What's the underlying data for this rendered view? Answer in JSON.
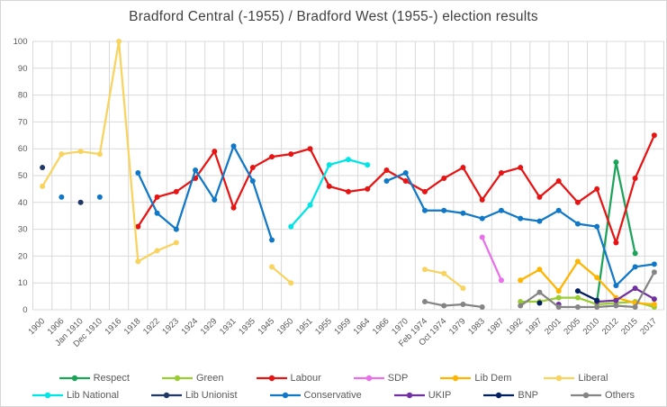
{
  "chart_data": {
    "type": "line",
    "title": "Bradford Central (-1955) / Bradford West (1955-) election results",
    "xlabel": "",
    "ylabel": "",
    "ylim": [
      0,
      100
    ],
    "y_tick_step": 10,
    "y_tick_labels": [
      "0",
      "10",
      "20",
      "30",
      "40",
      "50",
      "60",
      "70",
      "80",
      "90",
      "100"
    ],
    "grid": true,
    "legend_position": "bottom",
    "categories": [
      "1900",
      "1906",
      "Jan 1910",
      "Dec 1910",
      "1916",
      "1918",
      "1922",
      "1923",
      "1924",
      "1929",
      "1931",
      "1935",
      "1945",
      "1950",
      "1951",
      "1955",
      "1959",
      "1964",
      "1966",
      "1970",
      "Feb 1974",
      "Oct 1974",
      "1979",
      "1983",
      "1987",
      "1992",
      "1997",
      "2001",
      "2005",
      "2010",
      "2012",
      "2015",
      "2017"
    ],
    "series": [
      {
        "name": "Respect",
        "color": "#1CA35A",
        "points": [
          [
            "2010",
            3
          ],
          [
            "2012",
            55
          ],
          [
            "2015",
            21
          ]
        ]
      },
      {
        "name": "Green",
        "color": "#9ACD32",
        "points": [
          [
            "1992",
            3
          ],
          [
            "1997",
            3
          ],
          [
            "2001",
            4.5
          ],
          [
            "2005",
            4.5
          ],
          [
            "2010",
            2
          ],
          [
            "2012",
            2.5
          ],
          [
            "2015",
            3
          ],
          [
            "2017",
            1
          ]
        ]
      },
      {
        "name": "Labour",
        "color": "#E81313",
        "points": [
          [
            "1918",
            31
          ],
          [
            "1922",
            42
          ],
          [
            "1923",
            44
          ],
          [
            "1924",
            49
          ],
          [
            "1929",
            59
          ],
          [
            "1931",
            38
          ],
          [
            "1935",
            53
          ],
          [
            "1945",
            57
          ],
          [
            "1950",
            58
          ],
          [
            "1951",
            60
          ],
          [
            "1955",
            46
          ],
          [
            "1959",
            44
          ],
          [
            "1964",
            45
          ],
          [
            "1966",
            52
          ],
          [
            "1970",
            48
          ],
          [
            "Feb 1974",
            44
          ],
          [
            "Oct 1974",
            49
          ],
          [
            "1979",
            53
          ],
          [
            "1983",
            41
          ],
          [
            "1987",
            51
          ],
          [
            "1992",
            53
          ],
          [
            "1997",
            42
          ],
          [
            "2001",
            48
          ],
          [
            "2005",
            40
          ],
          [
            "2010",
            45
          ],
          [
            "2012",
            25
          ],
          [
            "2015",
            49
          ],
          [
            "2017",
            65
          ]
        ]
      },
      {
        "name": "SDP",
        "color": "#EA6FEA",
        "points": [
          [
            "1983",
            27
          ],
          [
            "1987",
            11
          ]
        ]
      },
      {
        "name": "Lib Dem",
        "color": "#FFB400",
        "points": [
          [
            "1992",
            11
          ],
          [
            "1997",
            15
          ],
          [
            "2001",
            7
          ],
          [
            "2005",
            18
          ],
          [
            "2010",
            12
          ],
          [
            "2012",
            4.5
          ],
          [
            "2015",
            2.5
          ],
          [
            "2017",
            2
          ]
        ]
      },
      {
        "name": "Liberal",
        "color": "#F8D35E",
        "points": [
          [
            "1900",
            46
          ],
          [
            "1906",
            58
          ],
          [
            "Jan 1910",
            59
          ],
          [
            "Dec 1910",
            58
          ],
          [
            "1916",
            100
          ],
          [
            "1918",
            18
          ],
          [
            "1922",
            22
          ],
          [
            "1923",
            25
          ],
          [
            "1945",
            16
          ],
          [
            "1950",
            10
          ],
          [
            "Feb 1974",
            15
          ],
          [
            "Oct 1974",
            13.5
          ],
          [
            "1979",
            8
          ]
        ]
      },
      {
        "name": "Lib National",
        "color": "#00E5E5",
        "points": [
          [
            "1950",
            31
          ],
          [
            "1951",
            39
          ],
          [
            "1955",
            54
          ],
          [
            "1959",
            56
          ],
          [
            "1964",
            54
          ]
        ]
      },
      {
        "name": "Lib Unionist",
        "color": "#1F3864",
        "points": [
          [
            "1900",
            53
          ],
          [
            "Jan 1910",
            40
          ]
        ]
      },
      {
        "name": "Conservative",
        "color": "#1178C8",
        "points": [
          [
            "1906",
            42
          ],
          [
            "Dec 1910",
            42
          ],
          [
            "1918",
            51
          ],
          [
            "1922",
            36
          ],
          [
            "1923",
            30
          ],
          [
            "1924",
            52
          ],
          [
            "1929",
            41
          ],
          [
            "1931",
            61
          ],
          [
            "1935",
            48
          ],
          [
            "1945",
            26
          ],
          [
            "1966",
            48
          ],
          [
            "1970",
            51
          ],
          [
            "Feb 1974",
            37
          ],
          [
            "Oct 1974",
            37
          ],
          [
            "1979",
            36
          ],
          [
            "1983",
            34
          ],
          [
            "1987",
            37
          ],
          [
            "1992",
            34
          ],
          [
            "1997",
            33
          ],
          [
            "2001",
            37
          ],
          [
            "2005",
            32
          ],
          [
            "2010",
            31
          ],
          [
            "2012",
            9
          ],
          [
            "2015",
            16
          ],
          [
            "2017",
            17
          ]
        ]
      },
      {
        "name": "UKIP",
        "color": "#7030A0",
        "points": [
          [
            "2001",
            2
          ],
          [
            "2010",
            3
          ],
          [
            "2012",
            3.5
          ],
          [
            "2015",
            8
          ],
          [
            "2017",
            4
          ]
        ]
      },
      {
        "name": "BNP",
        "color": "#002060",
        "points": [
          [
            "1997",
            2.5
          ],
          [
            "2005",
            7
          ],
          [
            "2010",
            3.5
          ]
        ]
      },
      {
        "name": "Others",
        "color": "#858585",
        "points": [
          [
            "Feb 1974",
            3
          ],
          [
            "Oct 1974",
            1.5
          ],
          [
            "1979",
            2
          ],
          [
            "1983",
            1
          ],
          [
            "1992",
            1.5
          ],
          [
            "1997",
            6.5
          ],
          [
            "2001",
            1
          ],
          [
            "2005",
            1
          ],
          [
            "2010",
            1
          ],
          [
            "2012",
            1.5
          ],
          [
            "2015",
            1
          ],
          [
            "2017",
            14
          ]
        ]
      }
    ],
    "legend_rows": [
      [
        "Respect",
        "Green",
        "Labour",
        "SDP",
        "Lib Dem",
        "Liberal"
      ],
      [
        "Lib National",
        "Lib Unionist",
        "Conservative",
        "UKIP",
        "BNP",
        "Others"
      ]
    ]
  },
  "style_colors": {
    "gridline": "#D9D9D9",
    "axis_text": "#595959",
    "title_text": "#404040"
  }
}
